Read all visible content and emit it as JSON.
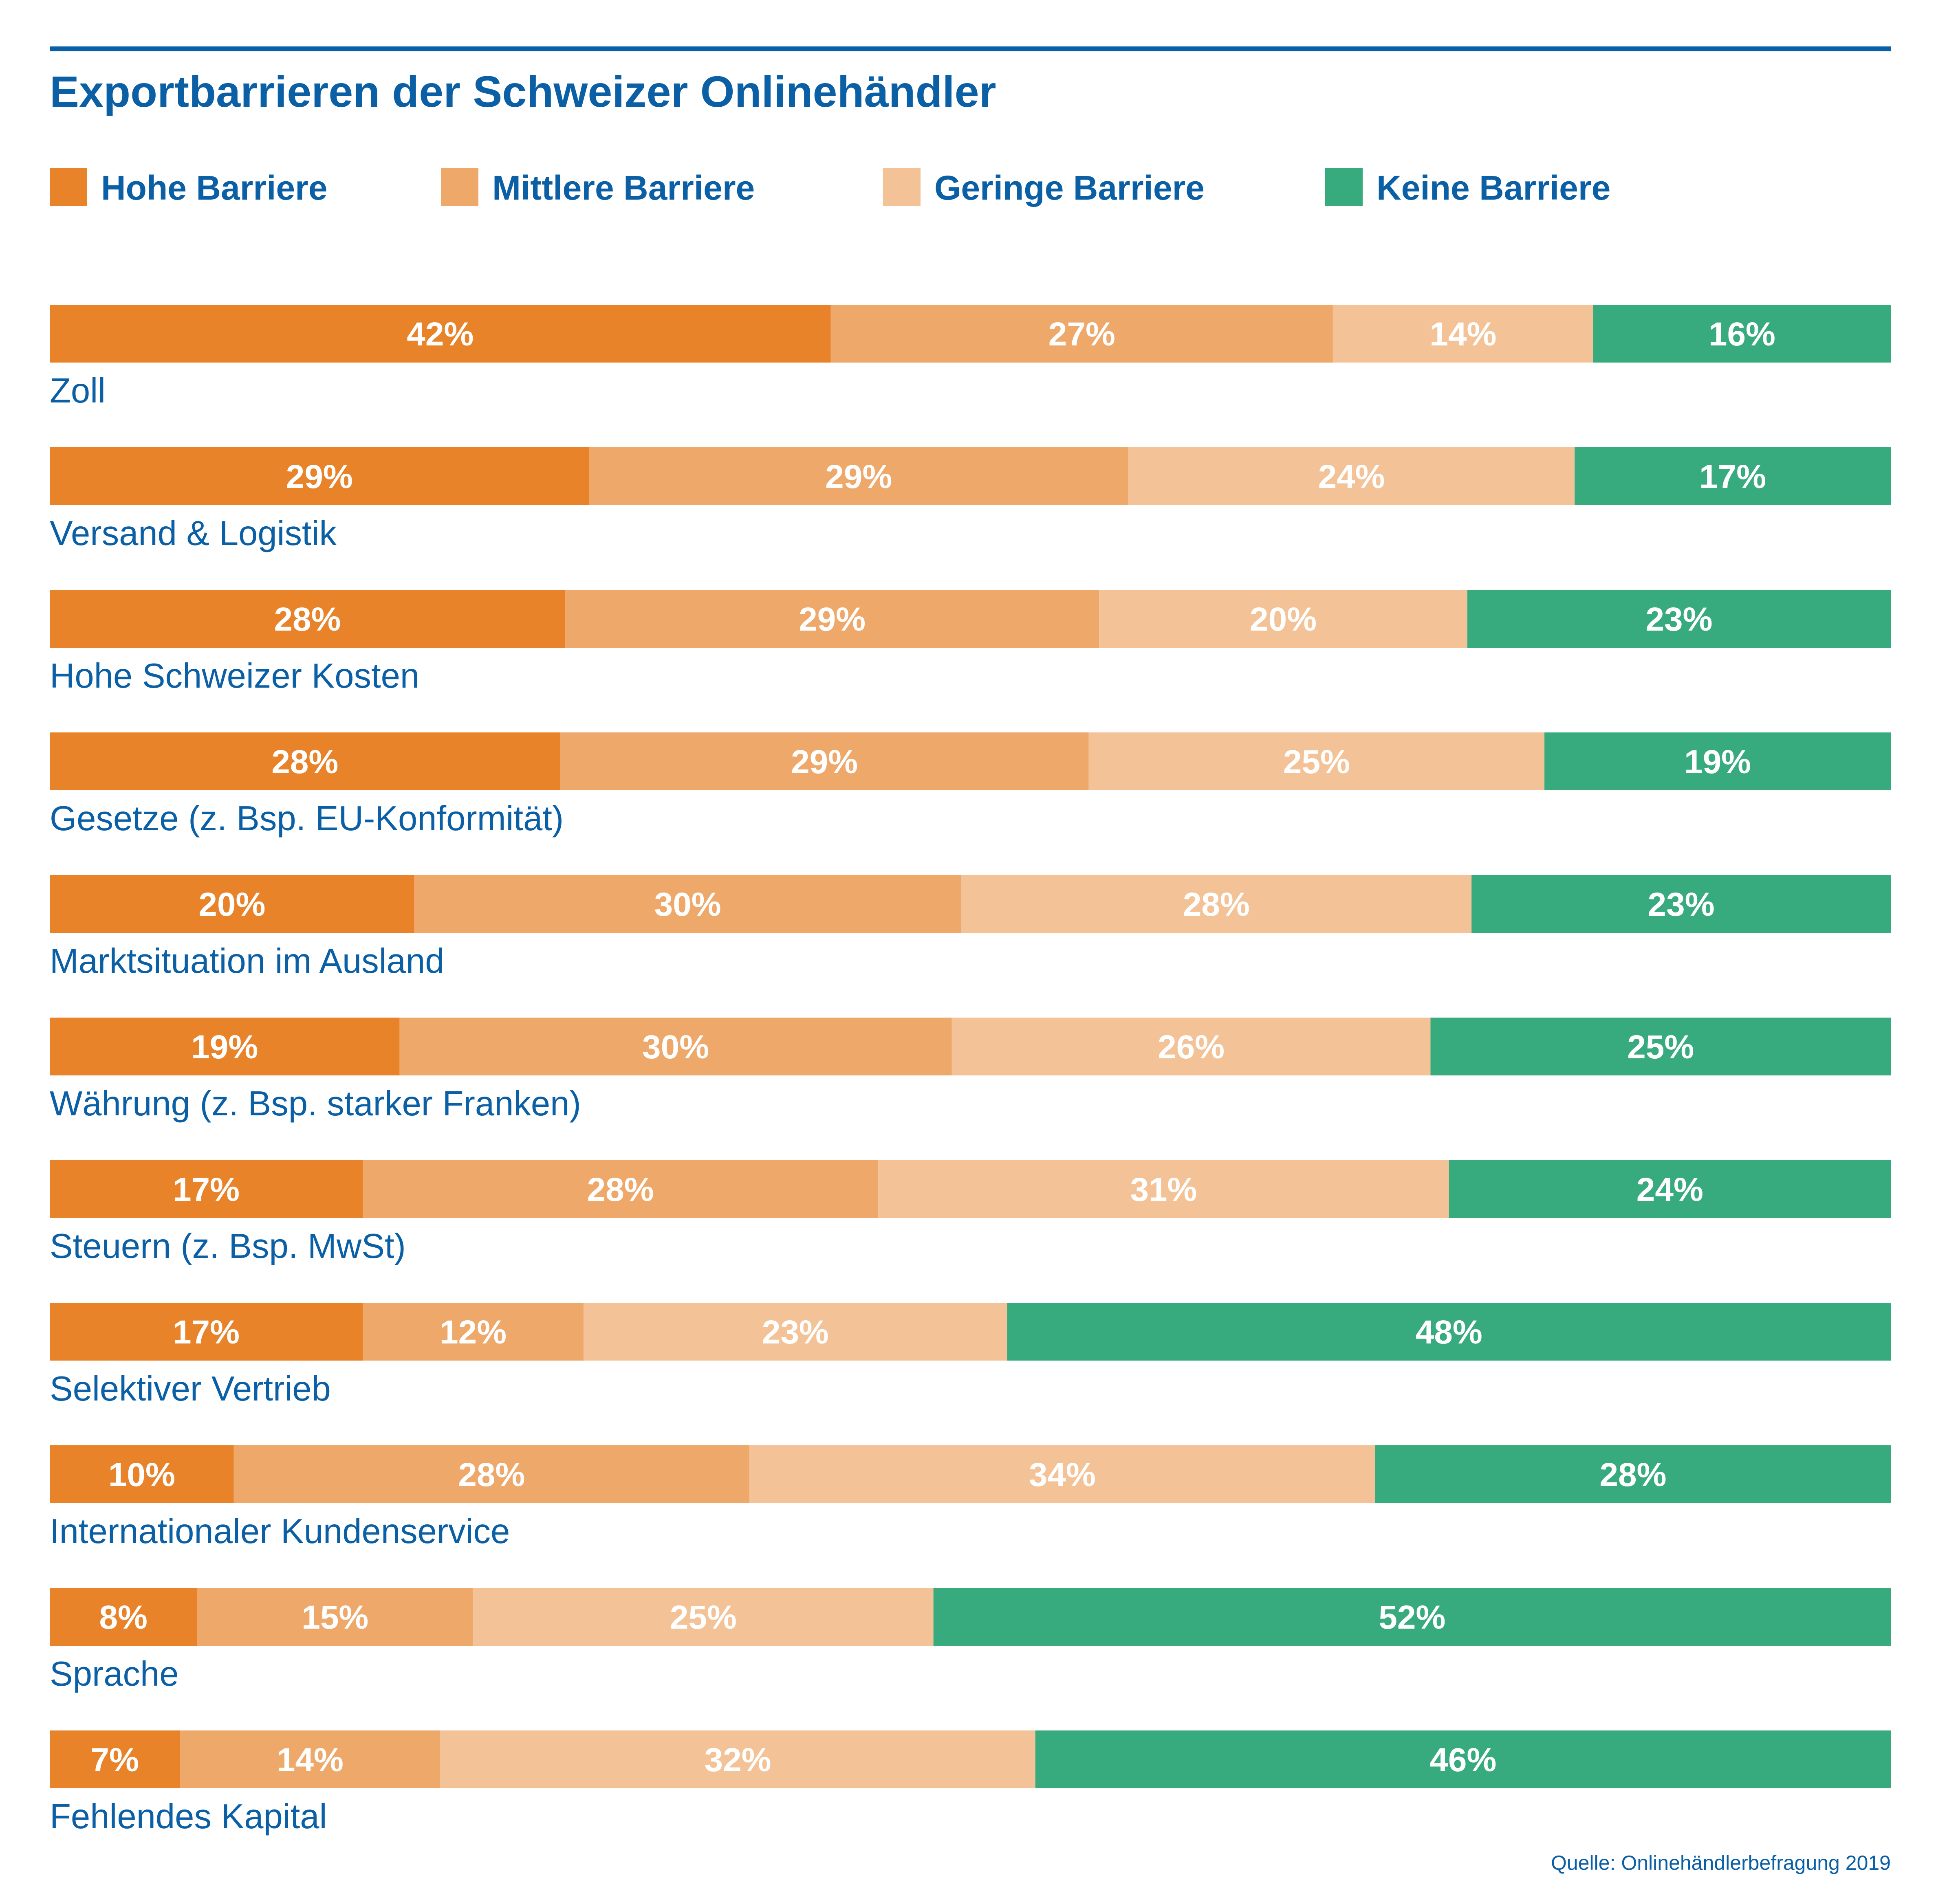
{
  "chart_data": {
    "type": "bar",
    "orientation": "horizontal",
    "stacked": true,
    "title": "Exportbarrieren der Schweizer Onlinehändler",
    "legend_position": "top",
    "grid": false,
    "categories": [
      "Zoll",
      "Versand & Logistik",
      "Hohe Schweizer Kosten",
      "Gesetze (z. Bsp. EU-Konformität)",
      "Marktsituation im Ausland",
      "Währung (z. Bsp. starker Franken)",
      "Steuern (z. Bsp. MwSt)",
      "Selektiver Vertrieb",
      "Internationaler Kundenservice",
      "Sprache",
      "Fehlendes Kapital"
    ],
    "series": [
      {
        "name": "Hohe Barriere",
        "color": "#E8832A",
        "values": [
          42,
          29,
          28,
          28,
          20,
          19,
          17,
          17,
          10,
          8,
          7
        ]
      },
      {
        "name": "Mittlere Barriere",
        "color": "#EEA86A",
        "values": [
          27,
          29,
          29,
          29,
          30,
          30,
          28,
          12,
          28,
          15,
          14
        ]
      },
      {
        "name": "Geringe Barriere",
        "color": "#F3C397",
        "values": [
          14,
          24,
          20,
          25,
          28,
          26,
          31,
          23,
          34,
          25,
          32
        ]
      },
      {
        "name": "Keine Barriere",
        "color": "#38AB7E",
        "values": [
          16,
          17,
          23,
          19,
          23,
          25,
          24,
          48,
          28,
          52,
          46
        ]
      }
    ],
    "value_suffix": "%",
    "source": "Quelle: Onlinehändlerbefragung 2019"
  },
  "colors": {
    "title": "#0B5FA5",
    "rule": "#0B5FA5",
    "row_label": "#0B5FA5",
    "data_label": "#FFFFFF"
  }
}
